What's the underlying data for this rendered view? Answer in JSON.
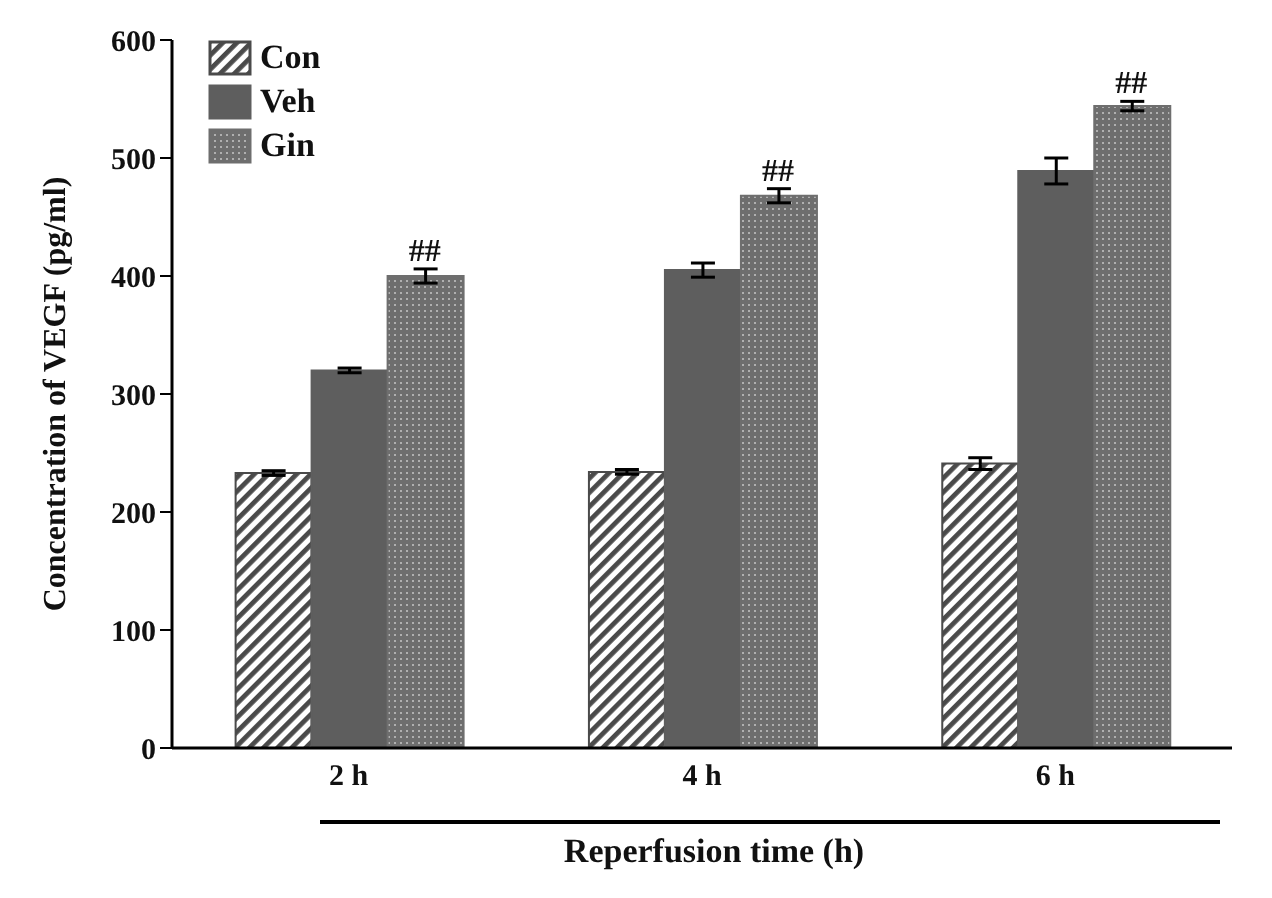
{
  "chart_data": {
    "type": "bar",
    "xlabel": "Reperfusion time (h)",
    "ylabel": "Concentration of VEGF (pg/ml)",
    "categories": [
      "2 h",
      "4 h",
      "6 h"
    ],
    "series": [
      {
        "name": "Con",
        "color": "#4a4a4a",
        "values": [
          233,
          234,
          241
        ],
        "errors": [
          2,
          2,
          5
        ]
      },
      {
        "name": "Veh",
        "color": "#5e5e5e",
        "values": [
          320,
          405,
          489
        ],
        "errors": [
          2,
          6,
          11
        ]
      },
      {
        "name": "Gin",
        "color": "#6e6e6e",
        "values": [
          400,
          468,
          544
        ],
        "errors": [
          6,
          6,
          4
        ]
      }
    ],
    "ylim": [
      0,
      600
    ],
    "yticks": [
      0,
      100,
      200,
      300,
      400,
      500,
      600
    ],
    "grid": false,
    "legend": "top left",
    "annotations": [
      "##",
      "##",
      "##"
    ]
  }
}
